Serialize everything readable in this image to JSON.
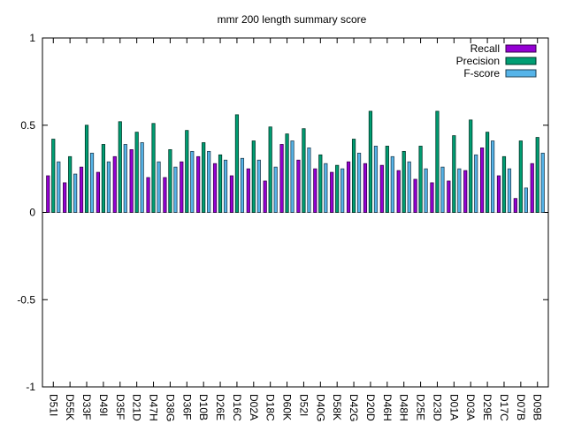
{
  "chart_data": {
    "type": "bar",
    "title": "mmr 200 length summary score",
    "xlabel": "",
    "ylabel": "",
    "ylim": [
      -1,
      1
    ],
    "yticks": [
      "1",
      "0.5",
      "0",
      "-0.5",
      "-1"
    ],
    "legend_position": "top-right",
    "categories": [
      "D51I",
      "D55K",
      "D33F",
      "D49I",
      "D35F",
      "D21D",
      "D47H",
      "D38G",
      "D36F",
      "D10B",
      "D26E",
      "D16C",
      "D02A",
      "D18C",
      "D60K",
      "D52I",
      "D40G",
      "D58K",
      "D42G",
      "D20D",
      "D46H",
      "D48H",
      "D25E",
      "D23D",
      "D01A",
      "D03A",
      "D29E",
      "D17C",
      "D07B",
      "D09B"
    ],
    "series": [
      {
        "name": "Recall",
        "color": "#9400d3",
        "values": [
          0.21,
          0.17,
          0.26,
          0.23,
          0.32,
          0.36,
          0.2,
          0.2,
          0.29,
          0.32,
          0.28,
          0.21,
          0.25,
          0.18,
          0.39,
          0.3,
          0.25,
          0.23,
          0.29,
          0.28,
          0.27,
          0.24,
          0.19,
          0.17,
          0.18,
          0.24,
          0.37,
          0.21,
          0.08,
          0.28
        ]
      },
      {
        "name": "Precision",
        "color": "#009e73",
        "values": [
          0.42,
          0.32,
          0.5,
          0.39,
          0.52,
          0.46,
          0.51,
          0.36,
          0.47,
          0.4,
          0.33,
          0.56,
          0.41,
          0.49,
          0.45,
          0.48,
          0.33,
          0.27,
          0.42,
          0.58,
          0.38,
          0.35,
          0.38,
          0.58,
          0.44,
          0.53,
          0.46,
          0.32,
          0.41,
          0.43
        ]
      },
      {
        "name": "F-score",
        "color": "#56b4e9",
        "values": [
          0.29,
          0.22,
          0.34,
          0.29,
          0.39,
          0.4,
          0.29,
          0.26,
          0.35,
          0.35,
          0.3,
          0.31,
          0.3,
          0.26,
          0.41,
          0.37,
          0.28,
          0.25,
          0.34,
          0.38,
          0.32,
          0.29,
          0.25,
          0.26,
          0.25,
          0.33,
          0.41,
          0.25,
          0.14,
          0.34
        ]
      }
    ]
  }
}
